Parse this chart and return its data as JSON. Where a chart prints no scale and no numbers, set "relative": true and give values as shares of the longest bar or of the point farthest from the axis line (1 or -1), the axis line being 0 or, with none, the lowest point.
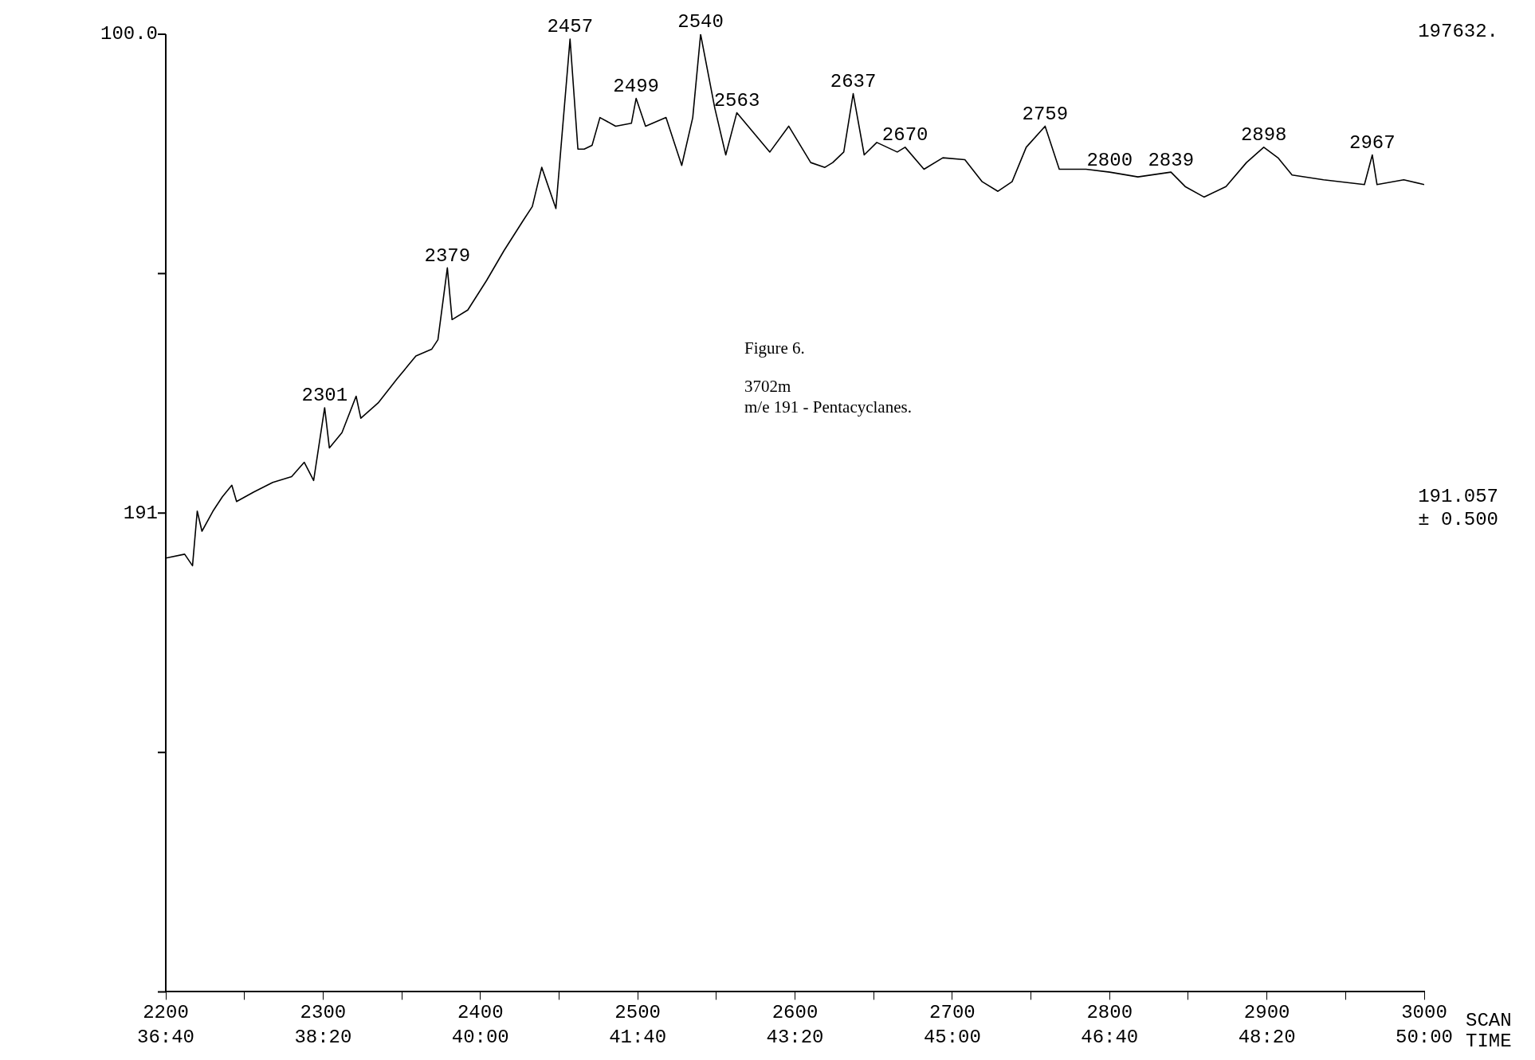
{
  "chart_data": {
    "type": "line",
    "relative": true,
    "xlabel": "SCAN\nTIME",
    "color": "#000000",
    "marker": "none",
    "grid": false,
    "legend": false,
    "x": [
      2200,
      2212,
      2217,
      2220,
      2223,
      2230,
      2236,
      2242,
      2245,
      2256,
      2268,
      2280,
      2288,
      2294,
      2301,
      2304,
      2312,
      2321,
      2324,
      2335,
      2347,
      2359,
      2369,
      2373,
      2379,
      2382,
      2392,
      2404,
      2415,
      2427,
      2433,
      2439,
      2448,
      2452,
      2457,
      2462,
      2466,
      2471,
      2476,
      2486,
      2496,
      2499,
      2505,
      2518,
      2528,
      2535,
      2540,
      2549,
      2556,
      2563,
      2584,
      2596,
      2610,
      2619,
      2624,
      2631,
      2637,
      2644,
      2652,
      2665,
      2670,
      2682,
      2694,
      2708,
      2719,
      2729,
      2738,
      2747,
      2759,
      2768,
      2785,
      2800,
      2818,
      2839,
      2848,
      2860,
      2874,
      2887,
      2898,
      2907,
      2916,
      2936,
      2962,
      2967,
      2970,
      2987,
      3000
    ],
    "values": [
      0.453,
      0.457,
      0.445,
      0.502,
      0.481,
      0.502,
      0.517,
      0.529,
      0.512,
      0.522,
      0.532,
      0.538,
      0.553,
      0.534,
      0.61,
      0.568,
      0.584,
      0.622,
      0.599,
      0.615,
      0.64,
      0.664,
      0.671,
      0.681,
      0.756,
      0.702,
      0.712,
      0.743,
      0.774,
      0.805,
      0.82,
      0.861,
      0.818,
      0.897,
      0.995,
      0.88,
      0.88,
      0.884,
      0.913,
      0.904,
      0.907,
      0.933,
      0.904,
      0.913,
      0.863,
      0.913,
      1,
      0.923,
      0.874,
      0.918,
      0.877,
      0.904,
      0.866,
      0.861,
      0.866,
      0.877,
      0.938,
      0.874,
      0.887,
      0.877,
      0.882,
      0.859,
      0.871,
      0.869,
      0.846,
      0.836,
      0.846,
      0.882,
      0.904,
      0.859,
      0.859,
      0.856,
      0.851,
      0.856,
      0.841,
      0.83,
      0.841,
      0.866,
      0.882,
      0.871,
      0.853,
      0.848,
      0.843,
      0.874,
      0.843,
      0.848,
      0.843
    ],
    "xlim": [
      2200,
      3000
    ],
    "xticks": [
      2200,
      {
        "value": 2250,
        "label": null
      },
      2300,
      {
        "value": 2350,
        "label": null
      },
      2400,
      {
        "value": 2450,
        "label": null
      },
      2500,
      {
        "value": 2550,
        "label": null
      },
      2600,
      {
        "value": 2650,
        "label": null
      },
      2700,
      {
        "value": 2750,
        "label": null
      },
      2800,
      {
        "value": 2850,
        "label": null
      },
      2900,
      {
        "value": 2950,
        "label": null
      },
      3000
    ],
    "x2lim": [
      2200,
      3000
    ],
    "x2ticks": [
      {
        "value": 2200,
        "label": "36:40"
      },
      {
        "value": 2300,
        "label": "38:20"
      },
      {
        "value": 2400,
        "label": "40:00"
      },
      {
        "value": 2500,
        "label": "41:40"
      },
      {
        "value": 2600,
        "label": "43:20"
      },
      {
        "value": 2700,
        "label": "45:00"
      },
      {
        "value": 2800,
        "label": "46:40"
      },
      {
        "value": 2900,
        "label": "48:20"
      },
      {
        "value": 3000,
        "label": "50:00"
      }
    ],
    "annotations": [
      {
        "text": "2301",
        "x": 2301,
        "y": 0.61
      },
      {
        "text": "2379",
        "x": 2379,
        "y": 0.756
      },
      {
        "text": "2457",
        "x": 2457,
        "y": 0.995
      },
      {
        "text": "2499",
        "x": 2499,
        "y": 0.933
      },
      {
        "text": "2540",
        "x": 2540,
        "y": 1
      },
      {
        "text": "2563",
        "x": 2563,
        "y": 0.918
      },
      {
        "text": "2637",
        "x": 2637,
        "y": 0.938
      },
      {
        "text": "2670",
        "x": 2670,
        "y": 0.882
      },
      {
        "text": "2759",
        "x": 2759,
        "y": 0.904
      },
      {
        "text": "2800",
        "x": 2800,
        "y": 0.856
      },
      {
        "text": "2839",
        "x": 2839,
        "y": 0.856
      },
      {
        "text": "2898",
        "x": 2898,
        "y": 0.882
      },
      {
        "text": "2967",
        "x": 2967,
        "y": 0.874
      },
      "100.0",
      "191",
      "197632.",
      "191.057",
      "± 0.500",
      "Figure 6.",
      "3702m",
      "m/e 191 - Pentacyclanes."
    ]
  }
}
